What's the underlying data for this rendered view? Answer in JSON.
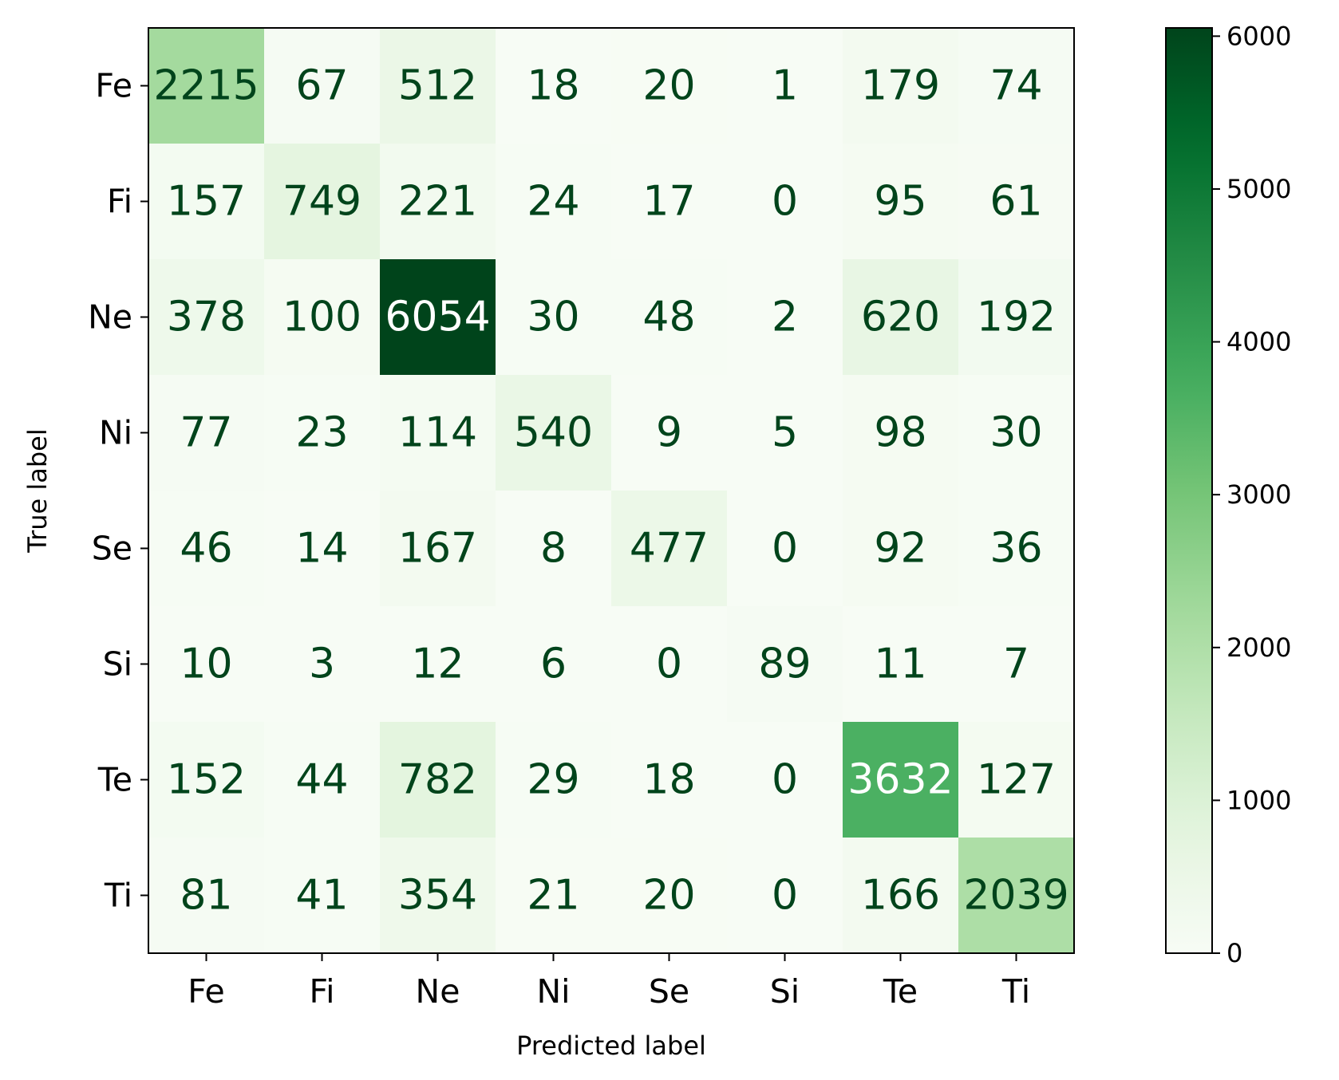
{
  "chart_data": {
    "type": "heatmap",
    "title": "",
    "xlabel": "Predicted label",
    "ylabel": "True label",
    "x_categories": [
      "Fe",
      "Fi",
      "Ne",
      "Ni",
      "Se",
      "Si",
      "Te",
      "Ti"
    ],
    "y_categories": [
      "Fe",
      "Fi",
      "Ne",
      "Ni",
      "Se",
      "Si",
      "Te",
      "Ti"
    ],
    "values": [
      [
        2215,
        67,
        512,
        18,
        20,
        1,
        179,
        74
      ],
      [
        157,
        749,
        221,
        24,
        17,
        0,
        95,
        61
      ],
      [
        378,
        100,
        6054,
        30,
        48,
        2,
        620,
        192
      ],
      [
        77,
        23,
        114,
        540,
        9,
        5,
        98,
        30
      ],
      [
        46,
        14,
        167,
        8,
        477,
        0,
        92,
        36
      ],
      [
        10,
        3,
        12,
        6,
        0,
        89,
        11,
        7
      ],
      [
        152,
        44,
        782,
        29,
        18,
        0,
        3632,
        127
      ],
      [
        81,
        41,
        354,
        21,
        20,
        0,
        166,
        2039
      ]
    ],
    "colormap": "Greens",
    "colorbar": {
      "range": [
        0,
        6054
      ],
      "ticks": [
        0,
        1000,
        2000,
        3000,
        4000,
        5000,
        6000
      ],
      "tick_labels": [
        "0",
        "1000",
        "2000",
        "3000",
        "4000",
        "5000",
        "6000"
      ]
    },
    "text_colors": {
      "dark": "#00441b",
      "light": "#ffffff"
    },
    "grid": false
  }
}
